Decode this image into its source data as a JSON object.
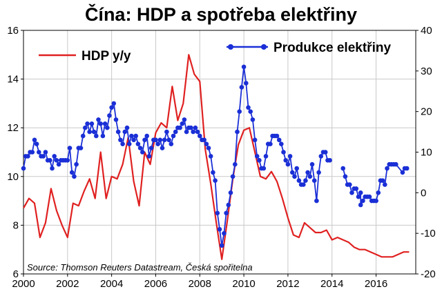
{
  "chart_data": {
    "type": "line",
    "title": "Čína: HDP a spotřeba elektřiny",
    "source": "Source: Thomson Reuters Datastream, Česká spořitelna",
    "x_axis": {
      "range": [
        2000,
        2017.8
      ],
      "ticks": [
        2000,
        2002,
        2004,
        2006,
        2008,
        2010,
        2012,
        2014,
        2016
      ],
      "tick_labels": [
        "2000",
        "2002",
        "2004",
        "2006",
        "2008",
        "2010",
        "2012",
        "2014",
        "2016"
      ]
    },
    "y_left": {
      "range": [
        6,
        16
      ],
      "ticks": [
        6,
        8,
        10,
        12,
        14,
        16
      ],
      "tick_labels": [
        "6",
        "8",
        "10",
        "12",
        "14",
        "16"
      ]
    },
    "y_right": {
      "range": [
        -20,
        40
      ],
      "ticks": [
        -20,
        -10,
        0,
        10,
        20,
        30,
        40
      ],
      "tick_labels": [
        "-20",
        "-10",
        "0",
        "10",
        "20",
        "30",
        "40"
      ]
    },
    "colors": {
      "gdp": "#e02020",
      "electricity": "#1a2fd6",
      "grid": "#c8c8c8",
      "axis": "#000000"
    },
    "series": [
      {
        "name": "HDP y/y",
        "axis": "left",
        "points": [
          [
            2000.0,
            8.7
          ],
          [
            2000.25,
            9.1
          ],
          [
            2000.5,
            8.9
          ],
          [
            2000.75,
            7.5
          ],
          [
            2001.0,
            8.1
          ],
          [
            2001.25,
            9.5
          ],
          [
            2001.5,
            8.6
          ],
          [
            2001.75,
            8.0
          ],
          [
            2002.0,
            7.5
          ],
          [
            2002.25,
            8.9
          ],
          [
            2002.5,
            8.8
          ],
          [
            2002.75,
            9.4
          ],
          [
            2003.0,
            9.9
          ],
          [
            2003.25,
            9.1
          ],
          [
            2003.5,
            11.0
          ],
          [
            2003.75,
            9.1
          ],
          [
            2004.0,
            10.0
          ],
          [
            2004.25,
            9.9
          ],
          [
            2004.5,
            10.5
          ],
          [
            2004.75,
            11.6
          ],
          [
            2005.0,
            9.8
          ],
          [
            2005.25,
            8.8
          ],
          [
            2005.5,
            11.0
          ],
          [
            2005.75,
            10.5
          ],
          [
            2006.0,
            11.8
          ],
          [
            2006.25,
            12.2
          ],
          [
            2006.5,
            12.0
          ],
          [
            2006.75,
            13.7
          ],
          [
            2007.0,
            12.3
          ],
          [
            2007.25,
            13.0
          ],
          [
            2007.5,
            15.0
          ],
          [
            2007.75,
            14.2
          ],
          [
            2008.0,
            13.9
          ],
          [
            2008.25,
            11.1
          ],
          [
            2008.5,
            9.7
          ],
          [
            2008.75,
            8.1
          ],
          [
            2009.0,
            6.6
          ],
          [
            2009.25,
            8.2
          ],
          [
            2009.5,
            9.9
          ],
          [
            2009.75,
            11.3
          ],
          [
            2010.0,
            11.9
          ],
          [
            2010.25,
            12.0
          ],
          [
            2010.5,
            11.0
          ],
          [
            2010.75,
            10.0
          ],
          [
            2011.0,
            9.9
          ],
          [
            2011.25,
            10.2
          ],
          [
            2011.5,
            9.8
          ],
          [
            2011.75,
            9.1
          ],
          [
            2012.0,
            8.3
          ],
          [
            2012.25,
            7.6
          ],
          [
            2012.5,
            7.5
          ],
          [
            2012.75,
            8.1
          ],
          [
            2013.0,
            7.9
          ],
          [
            2013.25,
            7.7
          ],
          [
            2013.5,
            7.7
          ],
          [
            2013.75,
            7.8
          ],
          [
            2014.0,
            7.4
          ],
          [
            2014.25,
            7.5
          ],
          [
            2014.5,
            7.4
          ],
          [
            2014.75,
            7.3
          ],
          [
            2015.0,
            7.1
          ],
          [
            2015.25,
            7.0
          ],
          [
            2015.5,
            7.0
          ],
          [
            2015.75,
            6.9
          ],
          [
            2016.0,
            6.8
          ],
          [
            2016.25,
            6.7
          ],
          [
            2016.5,
            6.7
          ],
          [
            2016.75,
            6.7
          ],
          [
            2017.0,
            6.8
          ],
          [
            2017.25,
            6.9
          ],
          [
            2017.5,
            6.9
          ]
        ]
      },
      {
        "name": "Produkce elektřiny",
        "axis": "right",
        "marker": "circle",
        "points": [
          [
            2000.0,
            6
          ],
          [
            2000.1,
            9
          ],
          [
            2000.2,
            9
          ],
          [
            2000.3,
            10
          ],
          [
            2000.4,
            10
          ],
          [
            2000.5,
            13
          ],
          [
            2000.6,
            12
          ],
          [
            2000.7,
            10
          ],
          [
            2000.8,
            9
          ],
          [
            2000.9,
            9
          ],
          [
            2001.0,
            10
          ],
          [
            2001.1,
            8
          ],
          [
            2001.2,
            8
          ],
          [
            2001.3,
            6
          ],
          [
            2001.4,
            9
          ],
          [
            2001.5,
            8
          ],
          [
            2001.6,
            7
          ],
          [
            2001.7,
            8
          ],
          [
            2001.8,
            8
          ],
          [
            2001.9,
            8
          ],
          [
            2002.0,
            8
          ],
          [
            2002.1,
            11
          ],
          [
            2002.2,
            5
          ],
          [
            2002.3,
            4
          ],
          [
            2002.4,
            7
          ],
          [
            2002.5,
            11
          ],
          [
            2002.6,
            11
          ],
          [
            2002.7,
            14
          ],
          [
            2002.8,
            16
          ],
          [
            2002.9,
            17
          ],
          [
            2003.0,
            15
          ],
          [
            2003.1,
            17
          ],
          [
            2003.2,
            15
          ],
          [
            2003.3,
            14
          ],
          [
            2003.4,
            18
          ],
          [
            2003.5,
            17
          ],
          [
            2003.6,
            14
          ],
          [
            2003.7,
            17
          ],
          [
            2003.8,
            16
          ],
          [
            2003.9,
            19
          ],
          [
            2004.0,
            21
          ],
          [
            2004.1,
            22
          ],
          [
            2004.2,
            18
          ],
          [
            2004.3,
            15
          ],
          [
            2004.4,
            13
          ],
          [
            2004.5,
            12
          ],
          [
            2004.6,
            15
          ],
          [
            2004.7,
            16
          ],
          [
            2004.8,
            12
          ],
          [
            2004.9,
            14
          ],
          [
            2005.0,
            13
          ],
          [
            2005.1,
            14
          ],
          [
            2005.2,
            12
          ],
          [
            2005.3,
            11
          ],
          [
            2005.4,
            10
          ],
          [
            2005.5,
            13
          ],
          [
            2005.6,
            14
          ],
          [
            2005.7,
            9
          ],
          [
            2005.8,
            11
          ],
          [
            2005.9,
            13
          ],
          [
            2006.0,
            13
          ],
          [
            2006.1,
            12
          ],
          [
            2006.2,
            13
          ],
          [
            2006.3,
            11
          ],
          [
            2006.4,
            13
          ],
          [
            2006.5,
            15
          ],
          [
            2006.6,
            13
          ],
          [
            2006.7,
            12
          ],
          [
            2006.8,
            14
          ],
          [
            2006.9,
            15
          ],
          [
            2007.0,
            16
          ],
          [
            2007.1,
            16
          ],
          [
            2007.2,
            17
          ],
          [
            2007.3,
            18
          ],
          [
            2007.4,
            15
          ],
          [
            2007.5,
            16
          ],
          [
            2007.6,
            16
          ],
          [
            2007.7,
            15
          ],
          [
            2007.8,
            16
          ],
          [
            2007.9,
            15
          ],
          [
            2008.0,
            14
          ],
          [
            2008.1,
            13
          ],
          [
            2008.2,
            13
          ],
          [
            2008.3,
            12
          ],
          [
            2008.4,
            11
          ],
          [
            2008.5,
            9
          ],
          [
            2008.6,
            5
          ],
          [
            2008.7,
            3
          ],
          [
            2008.8,
            -5
          ],
          [
            2008.9,
            -9
          ],
          [
            2009.0,
            -13
          ],
          [
            2009.1,
            -10
          ],
          [
            2009.2,
            -5
          ],
          [
            2009.3,
            -3
          ],
          [
            2009.4,
            0
          ],
          [
            2009.5,
            4
          ],
          [
            2009.6,
            7
          ],
          [
            2009.7,
            15
          ],
          [
            2009.8,
            20
          ],
          [
            2009.9,
            26
          ],
          [
            2010.0,
            31
          ],
          [
            2010.1,
            27
          ],
          [
            2010.2,
            21
          ],
          [
            2010.3,
            20
          ],
          [
            2010.4,
            18
          ],
          [
            2010.5,
            13
          ],
          [
            2010.6,
            9
          ],
          [
            2010.7,
            8
          ],
          [
            2010.8,
            6
          ],
          [
            2010.9,
            6
          ],
          [
            2011.0,
            9
          ],
          [
            2011.1,
            12
          ],
          [
            2011.2,
            12
          ],
          [
            2011.3,
            14
          ],
          [
            2011.4,
            14
          ],
          [
            2011.5,
            14
          ],
          [
            2011.6,
            13
          ],
          [
            2011.7,
            12
          ],
          [
            2011.8,
            10
          ],
          [
            2011.9,
            8
          ],
          [
            2012.0,
            7
          ],
          [
            2012.1,
            9
          ],
          [
            2012.2,
            5
          ],
          [
            2012.3,
            4
          ],
          [
            2012.4,
            6
          ],
          [
            2012.5,
            3
          ],
          [
            2012.6,
            2
          ],
          [
            2012.7,
            2
          ],
          [
            2012.8,
            3
          ],
          [
            2012.9,
            5
          ],
          [
            2013.0,
            4
          ],
          [
            2013.1,
            7
          ],
          [
            2013.2,
            3
          ],
          [
            2013.3,
            -2
          ],
          [
            2013.4,
            5
          ],
          [
            2013.5,
            9
          ],
          [
            2013.6,
            10
          ],
          [
            2013.7,
            10
          ],
          [
            2013.8,
            8
          ],
          [
            2013.9,
            8
          ],
          [
            2014.5,
            6
          ],
          [
            2014.6,
            4
          ],
          [
            2014.7,
            2
          ],
          [
            2014.8,
            2
          ],
          [
            2014.9,
            0
          ],
          [
            2015.0,
            1
          ],
          [
            2015.1,
            1
          ],
          [
            2015.2,
            -1
          ],
          [
            2015.3,
            0
          ],
          [
            2015.3,
            -3
          ],
          [
            2015.4,
            -2
          ],
          [
            2015.5,
            -1
          ],
          [
            2015.6,
            -1
          ],
          [
            2015.7,
            -1
          ],
          [
            2015.8,
            -2
          ],
          [
            2015.9,
            -2
          ],
          [
            2016.0,
            -2
          ],
          [
            2016.1,
            0
          ],
          [
            2016.2,
            3
          ],
          [
            2016.3,
            3
          ],
          [
            2016.4,
            2
          ],
          [
            2016.5,
            6
          ],
          [
            2016.6,
            7
          ],
          [
            2016.7,
            7
          ],
          [
            2016.8,
            7
          ],
          [
            2016.9,
            7
          ],
          [
            2017.2,
            5
          ],
          [
            2017.3,
            6
          ],
          [
            2017.4,
            6
          ]
        ]
      }
    ],
    "legend": [
      {
        "label": "HDP y/y",
        "style": "line"
      },
      {
        "label": "Produkce elektřiny",
        "style": "line-marker"
      }
    ]
  }
}
